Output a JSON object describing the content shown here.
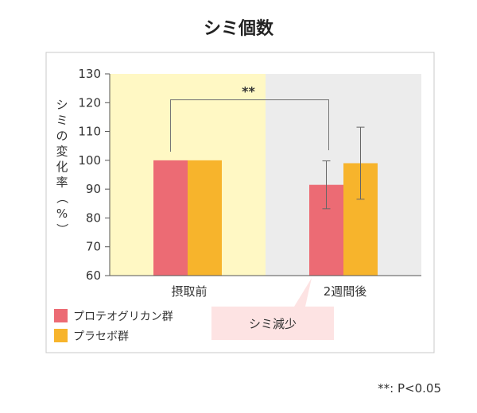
{
  "chart_data": {
    "type": "bar",
    "title": "シミ個数",
    "ylabel": "シミの変化率（%）",
    "xlabel": "",
    "ylim": [
      60,
      130
    ],
    "yticks": [
      60,
      70,
      80,
      90,
      100,
      110,
      120,
      130
    ],
    "categories": [
      "摂取前",
      "2週間後"
    ],
    "series": [
      {
        "name": "プロテオグリカン群",
        "values": [
          100,
          91.5
        ],
        "error": [
          0,
          8.3
        ]
      },
      {
        "name": "プラセボ群",
        "values": [
          100,
          99
        ],
        "error": [
          0,
          12.5
        ]
      }
    ],
    "colors": {
      "proteoglycan": "#ec6b74",
      "placebo": "#f7b42c",
      "before_bg": "#fff8c4",
      "after_bg": "#ececec"
    },
    "significance": {
      "label": "**",
      "between": [
        "摂取前",
        "2週間後"
      ],
      "series": "プロテオグリカン群"
    },
    "legend_position": "bottom-left",
    "grid": false
  },
  "callout": {
    "text": "シミ減少"
  },
  "footnote": {
    "text": "**: P<0.05"
  }
}
